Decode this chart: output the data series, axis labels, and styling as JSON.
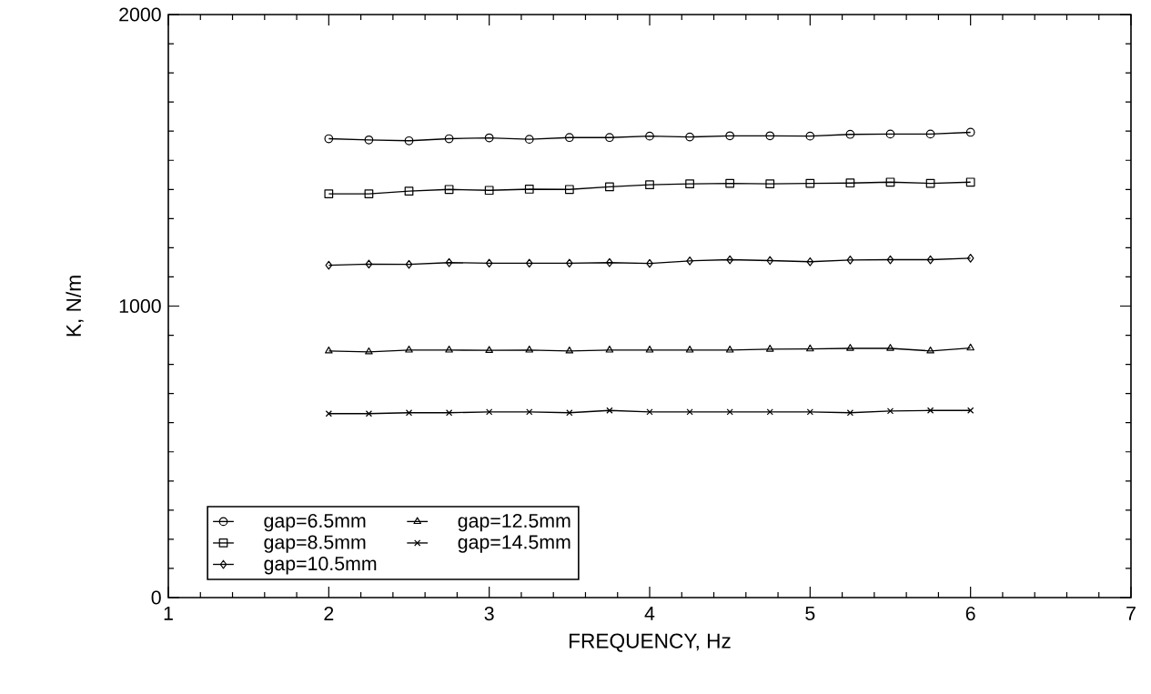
{
  "chart_data": {
    "type": "line",
    "xlabel": "FREQUENCY, Hz",
    "ylabel": "K, N/m",
    "x": [
      2,
      2.25,
      2.5,
      2.75,
      3,
      3.25,
      3.5,
      3.75,
      4,
      4.25,
      4.5,
      4.75,
      5,
      5.25,
      5.5,
      5.75,
      6
    ],
    "xlim": [
      1,
      7
    ],
    "xticks": [
      1,
      2,
      3,
      4,
      5,
      6,
      7
    ],
    "ylim": [
      0,
      2000
    ],
    "yticks": [
      0,
      1000,
      2000
    ],
    "legend": "bottom left",
    "line_style": "solid",
    "series": [
      {
        "name": "gap=6.5mm",
        "color": "#000000",
        "marker": "circle",
        "values": [
          1574,
          1570,
          1567,
          1574,
          1577,
          1572,
          1578,
          1578,
          1583,
          1580,
          1584,
          1584,
          1583,
          1589,
          1590,
          1590,
          1596
        ]
      },
      {
        "name": "gap=8.5mm",
        "color": "#000000",
        "marker": "square",
        "values": [
          1385,
          1385,
          1394,
          1400,
          1397,
          1401,
          1400,
          1409,
          1416,
          1419,
          1421,
          1419,
          1421,
          1422,
          1425,
          1421,
          1425
        ]
      },
      {
        "name": "gap=10.5mm",
        "color": "#000000",
        "marker": "diamond",
        "values": [
          1140,
          1144,
          1143,
          1149,
          1147,
          1147,
          1147,
          1149,
          1146,
          1155,
          1159,
          1156,
          1152,
          1158,
          1159,
          1159,
          1164
        ]
      },
      {
        "name": "gap=12.5mm",
        "color": "#000000",
        "marker": "triangle",
        "values": [
          846,
          843,
          849,
          849,
          848,
          849,
          846,
          849,
          849,
          849,
          849,
          852,
          853,
          855,
          855,
          846,
          856
        ]
      },
      {
        "name": "gap=14.5mm",
        "color": "#000000",
        "marker": "cross",
        "values": [
          631,
          631,
          634,
          634,
          637,
          637,
          634,
          642,
          637,
          637,
          637,
          637,
          637,
          634,
          640,
          642,
          642
        ]
      }
    ]
  }
}
